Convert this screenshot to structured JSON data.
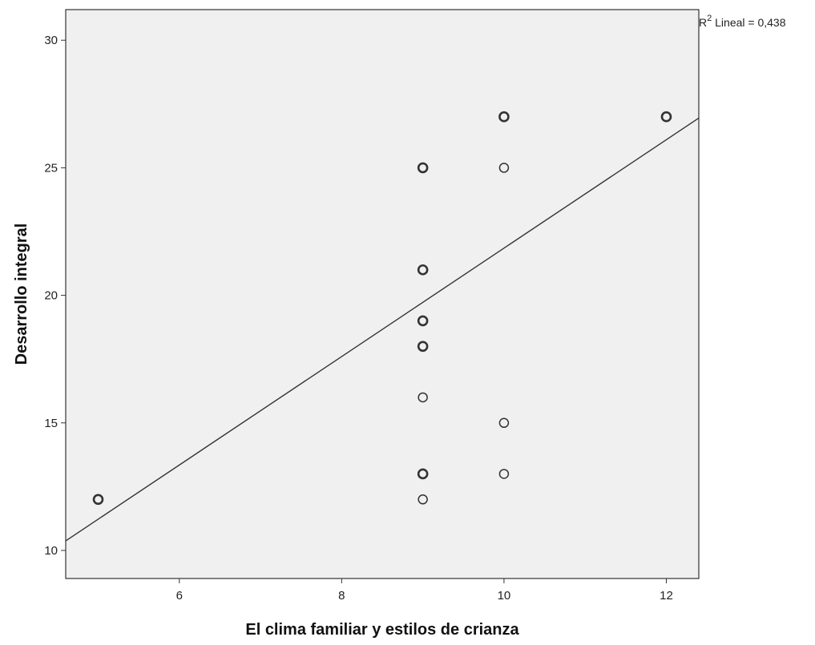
{
  "chart_data": {
    "type": "scatter",
    "title": "",
    "xlabel": "El clima familiar y estilos de crianza",
    "ylabel": "Desarrollo integral",
    "xlim": [
      4.6,
      12.4
    ],
    "ylim": [
      8.9,
      31.2
    ],
    "x_ticks": [
      6,
      8,
      10,
      12
    ],
    "y_ticks": [
      10,
      15,
      20,
      25,
      30
    ],
    "grid": false,
    "plot_background": "#f0f0f0",
    "marker_color": "#333333",
    "line_color": "#333333",
    "points": [
      {
        "x": 5,
        "y": 12,
        "overlap": true
      },
      {
        "x": 9,
        "y": 25,
        "overlap": true
      },
      {
        "x": 9,
        "y": 21,
        "overlap": true
      },
      {
        "x": 9,
        "y": 19,
        "overlap": true
      },
      {
        "x": 9,
        "y": 18,
        "overlap": true
      },
      {
        "x": 9,
        "y": 16,
        "overlap": false
      },
      {
        "x": 9,
        "y": 13,
        "overlap": true
      },
      {
        "x": 9,
        "y": 12,
        "overlap": false
      },
      {
        "x": 10,
        "y": 27,
        "overlap": true
      },
      {
        "x": 10,
        "y": 25,
        "overlap": false
      },
      {
        "x": 10,
        "y": 15,
        "overlap": false
      },
      {
        "x": 10,
        "y": 13,
        "overlap": false
      },
      {
        "x": 12,
        "y": 27,
        "overlap": true
      }
    ],
    "fit_line": {
      "type": "linear",
      "intercept": 0.6,
      "slope": 2.125,
      "r2_label": {
        "prefix": "R",
        "superscript": "2",
        "text": " Lineal = 0,438"
      }
    }
  }
}
